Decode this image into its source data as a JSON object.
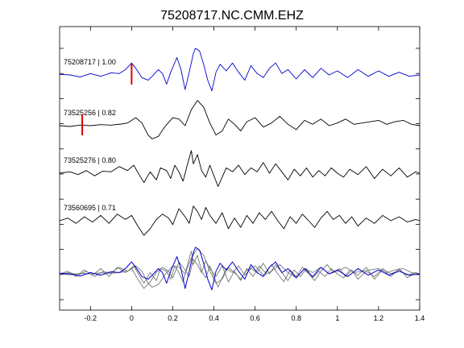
{
  "chart_data": {
    "type": "line",
    "title": "75208717.NC.CMM.EHZ",
    "xlabel": "",
    "ylabel": "",
    "xlim": [
      -0.35,
      1.4
    ],
    "x_ticks": [
      "-0.2",
      "0",
      "0.2",
      "0.4",
      "0.6",
      "0.8",
      "1",
      "1.2",
      "1.4"
    ],
    "x_tick_values": [
      -0.2,
      0,
      0.2,
      0.4,
      0.6,
      0.8,
      1,
      1.2,
      1.4
    ],
    "grid": false,
    "traces": [
      {
        "label": "75208717 | 1.00",
        "color": "#0000cc",
        "pick_time": 0.0,
        "points": [
          [
            -0.35,
            0.02
          ],
          [
            -0.3,
            0.0
          ],
          [
            -0.25,
            -0.08
          ],
          [
            -0.2,
            0.05
          ],
          [
            -0.15,
            -0.05
          ],
          [
            -0.1,
            0.08
          ],
          [
            -0.06,
            0.05
          ],
          [
            -0.03,
            0.2
          ],
          [
            0.0,
            0.45
          ],
          [
            0.02,
            0.25
          ],
          [
            0.05,
            -0.1
          ],
          [
            0.08,
            -0.2
          ],
          [
            0.1,
            -0.05
          ],
          [
            0.13,
            0.2
          ],
          [
            0.15,
            0.05
          ],
          [
            0.17,
            -0.35
          ],
          [
            0.19,
            0.1
          ],
          [
            0.22,
            0.65
          ],
          [
            0.24,
            0.2
          ],
          [
            0.26,
            -0.55
          ],
          [
            0.28,
            0.1
          ],
          [
            0.3,
            0.8
          ],
          [
            0.31,
            1.0
          ],
          [
            0.33,
            0.9
          ],
          [
            0.35,
            0.4
          ],
          [
            0.37,
            -0.2
          ],
          [
            0.39,
            -0.6
          ],
          [
            0.41,
            0.1
          ],
          [
            0.43,
            0.4
          ],
          [
            0.46,
            0.15
          ],
          [
            0.49,
            0.45
          ],
          [
            0.52,
            0.1
          ],
          [
            0.55,
            -0.2
          ],
          [
            0.58,
            0.35
          ],
          [
            0.61,
            0.05
          ],
          [
            0.64,
            -0.1
          ],
          [
            0.67,
            0.25
          ],
          [
            0.7,
            0.45
          ],
          [
            0.73,
            0.05
          ],
          [
            0.76,
            0.2
          ],
          [
            0.8,
            -0.15
          ],
          [
            0.84,
            0.2
          ],
          [
            0.88,
            -0.1
          ],
          [
            0.92,
            0.25
          ],
          [
            0.96,
            0.0
          ],
          [
            1.0,
            0.15
          ],
          [
            1.05,
            -0.1
          ],
          [
            1.1,
            0.2
          ],
          [
            1.15,
            -0.05
          ],
          [
            1.2,
            0.15
          ],
          [
            1.25,
            -0.05
          ],
          [
            1.3,
            0.1
          ],
          [
            1.35,
            -0.05
          ],
          [
            1.4,
            0.0
          ]
        ]
      },
      {
        "label": "73525256 | 0.82",
        "color": "#000000",
        "pick_time": -0.24,
        "points": [
          [
            -0.35,
            0.0
          ],
          [
            -0.3,
            -0.03
          ],
          [
            -0.25,
            0.02
          ],
          [
            -0.2,
            0.0
          ],
          [
            -0.15,
            0.04
          ],
          [
            -0.1,
            0.02
          ],
          [
            -0.05,
            0.06
          ],
          [
            -0.02,
            0.1
          ],
          [
            0.02,
            0.3
          ],
          [
            0.05,
            0.1
          ],
          [
            0.08,
            -0.35
          ],
          [
            0.1,
            -0.5
          ],
          [
            0.13,
            -0.4
          ],
          [
            0.16,
            -0.05
          ],
          [
            0.2,
            0.3
          ],
          [
            0.23,
            0.25
          ],
          [
            0.26,
            0.0
          ],
          [
            0.29,
            0.6
          ],
          [
            0.32,
            0.95
          ],
          [
            0.35,
            0.7
          ],
          [
            0.38,
            0.1
          ],
          [
            0.41,
            -0.35
          ],
          [
            0.44,
            -0.2
          ],
          [
            0.47,
            0.25
          ],
          [
            0.5,
            0.05
          ],
          [
            0.53,
            -0.2
          ],
          [
            0.56,
            0.15
          ],
          [
            0.6,
            0.3
          ],
          [
            0.64,
            -0.05
          ],
          [
            0.68,
            0.1
          ],
          [
            0.72,
            0.35
          ],
          [
            0.76,
            0.05
          ],
          [
            0.8,
            -0.15
          ],
          [
            0.84,
            0.2
          ],
          [
            0.88,
            0.05
          ],
          [
            0.92,
            0.25
          ],
          [
            0.96,
            0.0
          ],
          [
            1.0,
            0.1
          ],
          [
            1.04,
            0.25
          ],
          [
            1.08,
            0.05
          ],
          [
            1.12,
            0.1
          ],
          [
            1.16,
            0.15
          ],
          [
            1.2,
            0.2
          ],
          [
            1.24,
            0.05
          ],
          [
            1.28,
            0.15
          ],
          [
            1.32,
            0.2
          ],
          [
            1.36,
            0.05
          ],
          [
            1.4,
            0.0
          ]
        ]
      },
      {
        "label": "73525276 | 0.80",
        "color": "#000000",
        "pick_time": null,
        "points": [
          [
            -0.35,
            0.0
          ],
          [
            -0.3,
            0.05
          ],
          [
            -0.26,
            -0.05
          ],
          [
            -0.22,
            0.1
          ],
          [
            -0.18,
            -0.1
          ],
          [
            -0.14,
            0.08
          ],
          [
            -0.1,
            0.05
          ],
          [
            -0.06,
            0.25
          ],
          [
            -0.02,
            0.1
          ],
          [
            0.01,
            0.3
          ],
          [
            0.04,
            -0.1
          ],
          [
            0.06,
            -0.35
          ],
          [
            0.09,
            0.05
          ],
          [
            0.12,
            -0.25
          ],
          [
            0.14,
            0.2
          ],
          [
            0.17,
            0.1
          ],
          [
            0.19,
            -0.2
          ],
          [
            0.21,
            0.3
          ],
          [
            0.23,
            0.05
          ],
          [
            0.25,
            -0.3
          ],
          [
            0.27,
            0.3
          ],
          [
            0.29,
            0.85
          ],
          [
            0.3,
            0.35
          ],
          [
            0.32,
            0.7
          ],
          [
            0.34,
            0.1
          ],
          [
            0.36,
            -0.15
          ],
          [
            0.38,
            0.3
          ],
          [
            0.4,
            -0.1
          ],
          [
            0.42,
            -0.5
          ],
          [
            0.44,
            -0.15
          ],
          [
            0.46,
            0.2
          ],
          [
            0.49,
            0.05
          ],
          [
            0.52,
            0.3
          ],
          [
            0.55,
            -0.05
          ],
          [
            0.58,
            0.2
          ],
          [
            0.61,
            0.05
          ],
          [
            0.64,
            0.4
          ],
          [
            0.67,
            0.0
          ],
          [
            0.7,
            0.35
          ],
          [
            0.73,
            0.05
          ],
          [
            0.76,
            -0.25
          ],
          [
            0.79,
            0.15
          ],
          [
            0.82,
            -0.1
          ],
          [
            0.85,
            0.2
          ],
          [
            0.88,
            -0.15
          ],
          [
            0.91,
            0.1
          ],
          [
            0.94,
            -0.1
          ],
          [
            0.97,
            0.2
          ],
          [
            1.0,
            0.0
          ],
          [
            1.03,
            -0.15
          ],
          [
            1.06,
            0.15
          ],
          [
            1.1,
            -0.05
          ],
          [
            1.14,
            0.25
          ],
          [
            1.18,
            -0.2
          ],
          [
            1.22,
            0.15
          ],
          [
            1.26,
            -0.1
          ],
          [
            1.3,
            0.2
          ],
          [
            1.34,
            -0.15
          ],
          [
            1.38,
            0.05
          ],
          [
            1.4,
            0.0
          ]
        ]
      },
      {
        "label": "73560695 | 0.71",
        "color": "#000000",
        "pick_time": null,
        "points": [
          [
            -0.35,
            0.0
          ],
          [
            -0.31,
            0.1
          ],
          [
            -0.27,
            -0.1
          ],
          [
            -0.23,
            0.15
          ],
          [
            -0.19,
            -0.05
          ],
          [
            -0.15,
            0.2
          ],
          [
            -0.11,
            -0.1
          ],
          [
            -0.07,
            0.25
          ],
          [
            -0.03,
            0.05
          ],
          [
            0.0,
            0.2
          ],
          [
            0.03,
            -0.2
          ],
          [
            0.06,
            -0.55
          ],
          [
            0.09,
            -0.3
          ],
          [
            0.12,
            0.05
          ],
          [
            0.15,
            0.25
          ],
          [
            0.18,
            0.1
          ],
          [
            0.2,
            -0.15
          ],
          [
            0.23,
            0.45
          ],
          [
            0.26,
            0.15
          ],
          [
            0.28,
            -0.1
          ],
          [
            0.3,
            0.55
          ],
          [
            0.32,
            0.35
          ],
          [
            0.34,
            0.05
          ],
          [
            0.36,
            0.5
          ],
          [
            0.38,
            0.2
          ],
          [
            0.41,
            -0.1
          ],
          [
            0.44,
            0.3
          ],
          [
            0.47,
            -0.3
          ],
          [
            0.5,
            0.1
          ],
          [
            0.53,
            -0.25
          ],
          [
            0.56,
            0.2
          ],
          [
            0.59,
            -0.1
          ],
          [
            0.62,
            0.3
          ],
          [
            0.65,
            0.05
          ],
          [
            0.68,
            0.35
          ],
          [
            0.71,
            0.0
          ],
          [
            0.74,
            -0.3
          ],
          [
            0.77,
            0.15
          ],
          [
            0.8,
            -0.1
          ],
          [
            0.83,
            0.25
          ],
          [
            0.86,
            0.0
          ],
          [
            0.89,
            -0.25
          ],
          [
            0.92,
            0.1
          ],
          [
            0.95,
            0.35
          ],
          [
            0.98,
            0.05
          ],
          [
            1.01,
            0.2
          ],
          [
            1.04,
            -0.1
          ],
          [
            1.07,
            0.15
          ],
          [
            1.1,
            -0.2
          ],
          [
            1.14,
            0.1
          ],
          [
            1.18,
            -0.1
          ],
          [
            1.22,
            0.2
          ],
          [
            1.26,
            0.0
          ],
          [
            1.3,
            0.15
          ],
          [
            1.34,
            -0.05
          ],
          [
            1.38,
            0.05
          ],
          [
            1.4,
            0.0
          ]
        ]
      }
    ],
    "overlay_label": "",
    "overlay_colors": {
      "primary": "#0000cc",
      "others": "#777777"
    }
  }
}
